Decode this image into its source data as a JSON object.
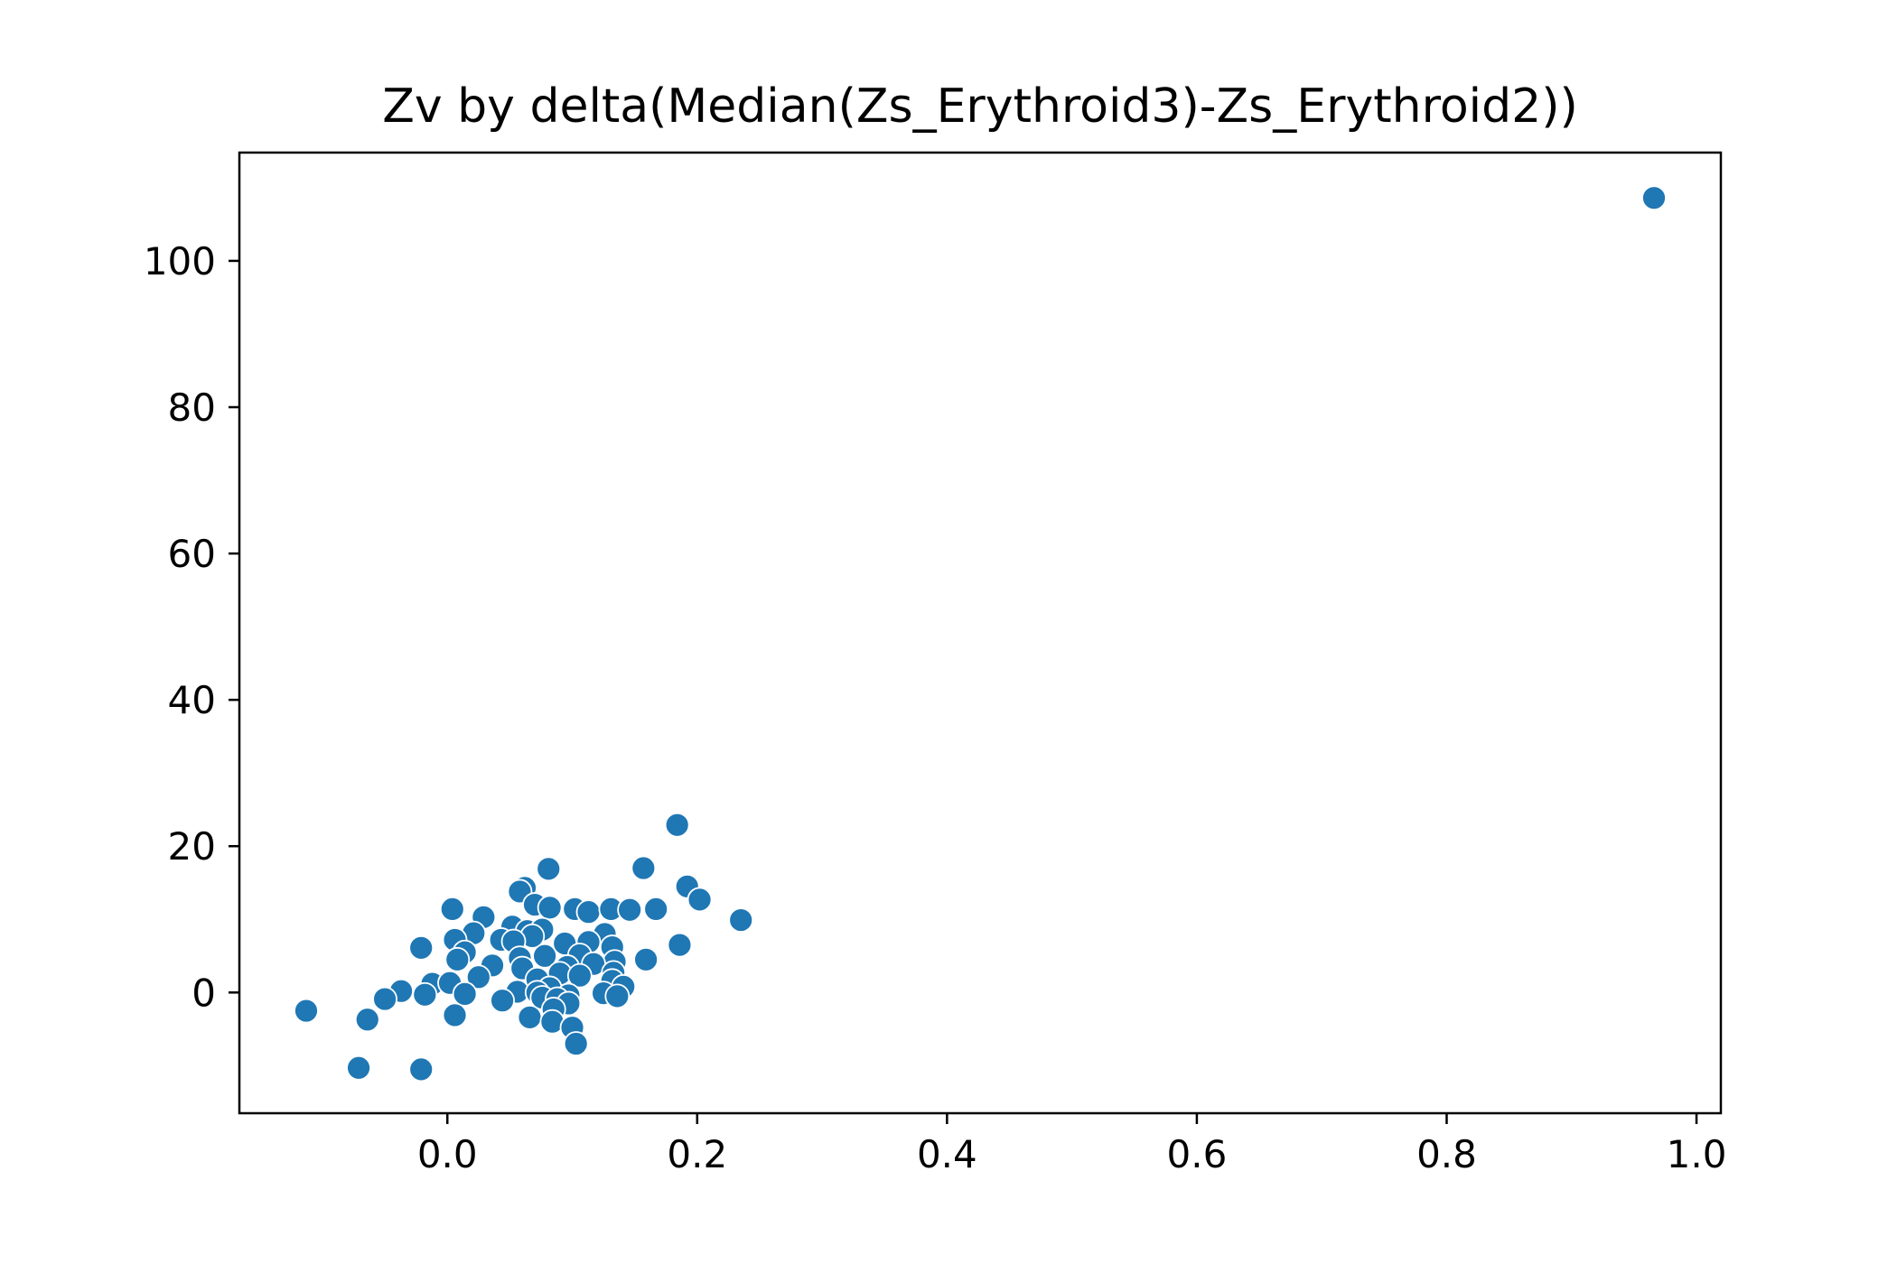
{
  "chart_data": {
    "type": "scatter",
    "title": "Zv by delta(Median(Zs_Erythroid3)-Zs_Erythroid2))",
    "xlabel": "",
    "ylabel": "",
    "xlim": [
      -0.1665,
      1.0195
    ],
    "ylim": [
      -16.5,
      114.8
    ],
    "x_ticks": [
      0.0,
      0.2,
      0.4,
      0.6,
      0.8,
      1.0
    ],
    "x_tick_labels": [
      "0.0",
      "0.2",
      "0.4",
      "0.6",
      "0.8",
      "1.0"
    ],
    "y_ticks": [
      0,
      20,
      40,
      60,
      80,
      100
    ],
    "y_tick_labels": [
      "0",
      "20",
      "40",
      "60",
      "80",
      "100"
    ],
    "grid": false,
    "legend": "none",
    "color": "#1f77b4",
    "points": [
      {
        "x": 0.966,
        "y": 108.6
      },
      {
        "x": 0.184,
        "y": 22.9
      },
      {
        "x": 0.157,
        "y": 17.0
      },
      {
        "x": 0.081,
        "y": 16.9
      },
      {
        "x": 0.192,
        "y": 14.5
      },
      {
        "x": 0.062,
        "y": 14.3
      },
      {
        "x": 0.058,
        "y": 13.8
      },
      {
        "x": 0.202,
        "y": 12.7
      },
      {
        "x": 0.07,
        "y": 12.0
      },
      {
        "x": 0.004,
        "y": 11.4
      },
      {
        "x": 0.082,
        "y": 11.6
      },
      {
        "x": 0.102,
        "y": 11.4
      },
      {
        "x": 0.113,
        "y": 11.0
      },
      {
        "x": 0.131,
        "y": 11.4
      },
      {
        "x": 0.146,
        "y": 11.3
      },
      {
        "x": 0.167,
        "y": 11.4
      },
      {
        "x": 0.029,
        "y": 10.3
      },
      {
        "x": 0.235,
        "y": 9.9
      },
      {
        "x": 0.052,
        "y": 9.0
      },
      {
        "x": 0.064,
        "y": 8.4
      },
      {
        "x": 0.076,
        "y": 8.6
      },
      {
        "x": 0.021,
        "y": 8.1
      },
      {
        "x": 0.126,
        "y": 8.0
      },
      {
        "x": 0.068,
        "y": 7.7
      },
      {
        "x": 0.006,
        "y": 7.2
      },
      {
        "x": 0.043,
        "y": 7.2
      },
      {
        "x": 0.053,
        "y": 7.0
      },
      {
        "x": 0.113,
        "y": 6.9
      },
      {
        "x": 0.094,
        "y": 6.7
      },
      {
        "x": 0.186,
        "y": 6.5
      },
      {
        "x": 0.132,
        "y": 6.2
      },
      {
        "x": -0.021,
        "y": 6.1
      },
      {
        "x": 0.014,
        "y": 5.5
      },
      {
        "x": 0.106,
        "y": 5.1
      },
      {
        "x": 0.078,
        "y": 5.0
      },
      {
        "x": 0.058,
        "y": 4.7
      },
      {
        "x": 0.008,
        "y": 4.5
      },
      {
        "x": 0.159,
        "y": 4.5
      },
      {
        "x": 0.134,
        "y": 4.2
      },
      {
        "x": 0.117,
        "y": 3.9
      },
      {
        "x": 0.036,
        "y": 3.7
      },
      {
        "x": 0.096,
        "y": 3.5
      },
      {
        "x": 0.06,
        "y": 3.3
      },
      {
        "x": 0.09,
        "y": 2.6
      },
      {
        "x": 0.133,
        "y": 2.7
      },
      {
        "x": 0.106,
        "y": 2.3
      },
      {
        "x": 0.025,
        "y": 2.1
      },
      {
        "x": 0.072,
        "y": 1.8
      },
      {
        "x": 0.132,
        "y": 1.6
      },
      {
        "x": -0.012,
        "y": 1.2
      },
      {
        "x": 0.002,
        "y": 1.3
      },
      {
        "x": 0.141,
        "y": 0.8
      },
      {
        "x": 0.082,
        "y": 0.6
      },
      {
        "x": -0.037,
        "y": 0.2
      },
      {
        "x": 0.056,
        "y": 0.1
      },
      {
        "x": 0.072,
        "y": 0.0
      },
      {
        "x": 0.125,
        "y": -0.1
      },
      {
        "x": 0.014,
        "y": -0.2
      },
      {
        "x": -0.018,
        "y": -0.3
      },
      {
        "x": 0.097,
        "y": -0.4
      },
      {
        "x": 0.136,
        "y": -0.5
      },
      {
        "x": 0.076,
        "y": -0.7
      },
      {
        "x": 0.088,
        "y": -0.9
      },
      {
        "x": -0.05,
        "y": -0.9
      },
      {
        "x": 0.044,
        "y": -1.1
      },
      {
        "x": 0.097,
        "y": -1.5
      },
      {
        "x": 0.085,
        "y": -2.3
      },
      {
        "x": -0.113,
        "y": -2.5
      },
      {
        "x": 0.006,
        "y": -3.1
      },
      {
        "x": 0.066,
        "y": -3.4
      },
      {
        "x": -0.064,
        "y": -3.7
      },
      {
        "x": 0.084,
        "y": -4.0
      },
      {
        "x": 0.1,
        "y": -4.8
      },
      {
        "x": 0.103,
        "y": -7.0
      },
      {
        "x": -0.071,
        "y": -10.3
      },
      {
        "x": -0.021,
        "y": -10.5
      }
    ]
  }
}
